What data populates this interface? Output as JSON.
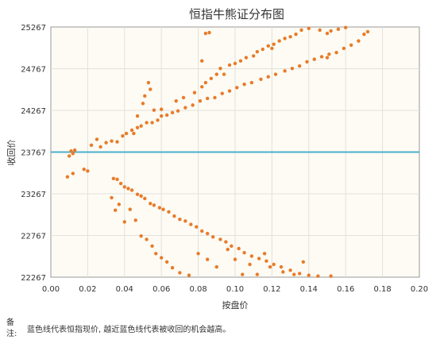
{
  "chart_data": {
    "type": "scatter",
    "title": "恒指牛熊证分布图",
    "xlabel": "按盘价",
    "ylabel": "收回价",
    "xlim": [
      0,
      0.2
    ],
    "ylim": [
      22267,
      25267
    ],
    "x_ticks": [
      "0.00",
      "0.02",
      "0.04",
      "0.06",
      "0.08",
      "0.10",
      "0.12",
      "0.14",
      "0.16",
      "0.18",
      "0.20"
    ],
    "y_ticks": [
      "22267",
      "22767",
      "23267",
      "23767",
      "24267",
      "24767",
      "25267"
    ],
    "grid": true,
    "reference_line": {
      "y": 23767,
      "color": "#4ab0cc"
    },
    "point_color": "#e87b2a",
    "series": [
      {
        "points": [
          [
            0.01,
            23720
          ],
          [
            0.011,
            23780
          ],
          [
            0.012,
            23750
          ],
          [
            0.013,
            23790
          ],
          [
            0.009,
            23470
          ],
          [
            0.012,
            23510
          ],
          [
            0.018,
            23560
          ],
          [
            0.02,
            23540
          ],
          [
            0.022,
            23850
          ],
          [
            0.025,
            23920
          ],
          [
            0.027,
            23830
          ],
          [
            0.03,
            23880
          ],
          [
            0.033,
            23900
          ],
          [
            0.036,
            23890
          ],
          [
            0.039,
            23960
          ],
          [
            0.041,
            23990
          ],
          [
            0.044,
            24030
          ],
          [
            0.047,
            24060
          ],
          [
            0.049,
            24080
          ],
          [
            0.052,
            24120
          ],
          [
            0.055,
            24120
          ],
          [
            0.058,
            24150
          ],
          [
            0.06,
            24200
          ],
          [
            0.063,
            24210
          ],
          [
            0.066,
            24240
          ],
          [
            0.069,
            24260
          ],
          [
            0.073,
            24300
          ],
          [
            0.077,
            24330
          ],
          [
            0.081,
            24380
          ],
          [
            0.085,
            24410
          ],
          [
            0.089,
            24420
          ],
          [
            0.093,
            24470
          ],
          [
            0.097,
            24500
          ],
          [
            0.101,
            24540
          ],
          [
            0.105,
            24580
          ],
          [
            0.109,
            24600
          ],
          [
            0.114,
            24640
          ],
          [
            0.118,
            24670
          ],
          [
            0.122,
            24700
          ],
          [
            0.127,
            24740
          ],
          [
            0.131,
            24770
          ],
          [
            0.135,
            24800
          ],
          [
            0.139,
            24850
          ],
          [
            0.143,
            24880
          ],
          [
            0.147,
            24910
          ],
          [
            0.151,
            24940
          ],
          [
            0.155,
            24960
          ],
          [
            0.159,
            25010
          ],
          [
            0.163,
            25050
          ],
          [
            0.167,
            25100
          ],
          [
            0.17,
            25180
          ],
          [
            0.172,
            25210
          ],
          [
            0.045,
            23990
          ],
          [
            0.047,
            24200
          ],
          [
            0.05,
            24350
          ],
          [
            0.051,
            24440
          ],
          [
            0.053,
            24600
          ],
          [
            0.054,
            24520
          ],
          [
            0.056,
            24270
          ],
          [
            0.06,
            24280
          ],
          [
            0.068,
            24380
          ],
          [
            0.072,
            24420
          ],
          [
            0.078,
            24480
          ],
          [
            0.082,
            24550
          ],
          [
            0.084,
            24600
          ],
          [
            0.087,
            24650
          ],
          [
            0.09,
            24700
          ],
          [
            0.092,
            24770
          ],
          [
            0.094,
            24700
          ],
          [
            0.097,
            24810
          ],
          [
            0.1,
            24830
          ],
          [
            0.103,
            24860
          ],
          [
            0.106,
            24900
          ],
          [
            0.11,
            24920
          ],
          [
            0.112,
            24970
          ],
          [
            0.115,
            25000
          ],
          [
            0.118,
            25040
          ],
          [
            0.121,
            25060
          ],
          [
            0.124,
            25100
          ],
          [
            0.127,
            25130
          ],
          [
            0.13,
            25150
          ],
          [
            0.133,
            25180
          ],
          [
            0.136,
            25230
          ],
          [
            0.14,
            25250
          ],
          [
            0.146,
            25230
          ],
          [
            0.15,
            25190
          ],
          [
            0.152,
            25220
          ],
          [
            0.156,
            25240
          ],
          [
            0.16,
            25260
          ],
          [
            0.082,
            24860
          ],
          [
            0.084,
            25190
          ],
          [
            0.086,
            25200
          ],
          [
            0.12,
            25010
          ],
          [
            0.15,
            24900
          ],
          [
            0.034,
            23450
          ],
          [
            0.036,
            23440
          ],
          [
            0.038,
            23390
          ],
          [
            0.04,
            23350
          ],
          [
            0.042,
            23330
          ],
          [
            0.044,
            23310
          ],
          [
            0.047,
            23260
          ],
          [
            0.049,
            23240
          ],
          [
            0.051,
            23210
          ],
          [
            0.054,
            23150
          ],
          [
            0.056,
            23130
          ],
          [
            0.059,
            23100
          ],
          [
            0.061,
            23080
          ],
          [
            0.064,
            23050
          ],
          [
            0.067,
            23000
          ],
          [
            0.07,
            22960
          ],
          [
            0.073,
            22940
          ],
          [
            0.076,
            22900
          ],
          [
            0.079,
            22870
          ],
          [
            0.082,
            22820
          ],
          [
            0.085,
            22790
          ],
          [
            0.088,
            22750
          ],
          [
            0.092,
            22720
          ],
          [
            0.095,
            22690
          ],
          [
            0.098,
            22640
          ],
          [
            0.102,
            22610
          ],
          [
            0.105,
            22560
          ],
          [
            0.109,
            22520
          ],
          [
            0.113,
            22490
          ],
          [
            0.117,
            22460
          ],
          [
            0.121,
            22420
          ],
          [
            0.125,
            22390
          ],
          [
            0.13,
            22350
          ],
          [
            0.135,
            22310
          ],
          [
            0.14,
            22290
          ],
          [
            0.033,
            23220
          ],
          [
            0.035,
            23070
          ],
          [
            0.037,
            23140
          ],
          [
            0.04,
            22930
          ],
          [
            0.043,
            23080
          ],
          [
            0.046,
            22950
          ],
          [
            0.049,
            22760
          ],
          [
            0.052,
            22720
          ],
          [
            0.055,
            22640
          ],
          [
            0.057,
            22550
          ],
          [
            0.06,
            22500
          ],
          [
            0.063,
            22450
          ],
          [
            0.066,
            22380
          ],
          [
            0.07,
            22320
          ],
          [
            0.075,
            22290
          ],
          [
            0.08,
            22550
          ],
          [
            0.085,
            22480
          ],
          [
            0.09,
            22390
          ],
          [
            0.096,
            22600
          ],
          [
            0.1,
            22480
          ],
          [
            0.104,
            22300
          ],
          [
            0.108,
            22420
          ],
          [
            0.112,
            22300
          ],
          [
            0.116,
            22550
          ],
          [
            0.119,
            22390
          ],
          [
            0.126,
            22330
          ],
          [
            0.132,
            22300
          ],
          [
            0.137,
            22450
          ],
          [
            0.145,
            22280
          ],
          [
            0.152,
            22280
          ]
        ]
      }
    ]
  },
  "note": {
    "label": "备注:",
    "text": "蓝色线代表恒指现价, 越近蓝色线代表被收回的机会越高。"
  }
}
